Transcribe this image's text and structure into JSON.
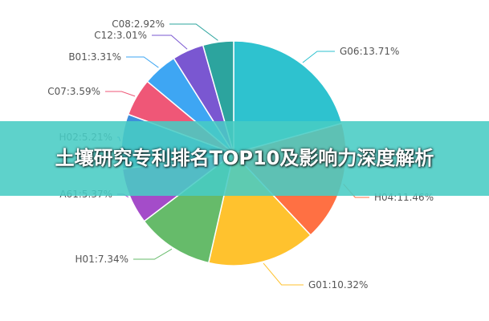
{
  "overlay_title": "土壤研究专利排名TOP10及影响力深度解析",
  "chart_data": {
    "type": "pie",
    "title": "",
    "slices": [
      {
        "label": "G06:13.71%",
        "name": "G06",
        "value": 13.71,
        "color": "#2EC2CF"
      },
      {
        "label": "H04:11.46%",
        "name": "H04",
        "value": 11.46,
        "color": "#FF7043"
      },
      {
        "label": "G01:10.32%",
        "name": "G01",
        "value": 10.32,
        "color": "#FFC22E"
      },
      {
        "label": "H01:7.34%",
        "name": "H01",
        "value": 7.34,
        "color": "#66BB6A"
      },
      {
        "label": "A61:5.37%",
        "name": "A61",
        "value": 5.37,
        "color": "#A44CC9"
      },
      {
        "label": "H02:5.21%",
        "name": "H02",
        "value": 5.21,
        "color": "#3E8EDB"
      },
      {
        "label": "C07:3.59%",
        "name": "C07",
        "value": 3.59,
        "color": "#EF5777"
      },
      {
        "label": "B01:3.31%",
        "name": "B01",
        "value": 3.31,
        "color": "#3EA6F3"
      },
      {
        "label": "C12:3.01%",
        "name": "C12",
        "value": 3.01,
        "color": "#7A57D1"
      },
      {
        "label": "C08:2.92%",
        "name": "C08",
        "value": 2.92,
        "color": "#2CA49E"
      }
    ]
  }
}
